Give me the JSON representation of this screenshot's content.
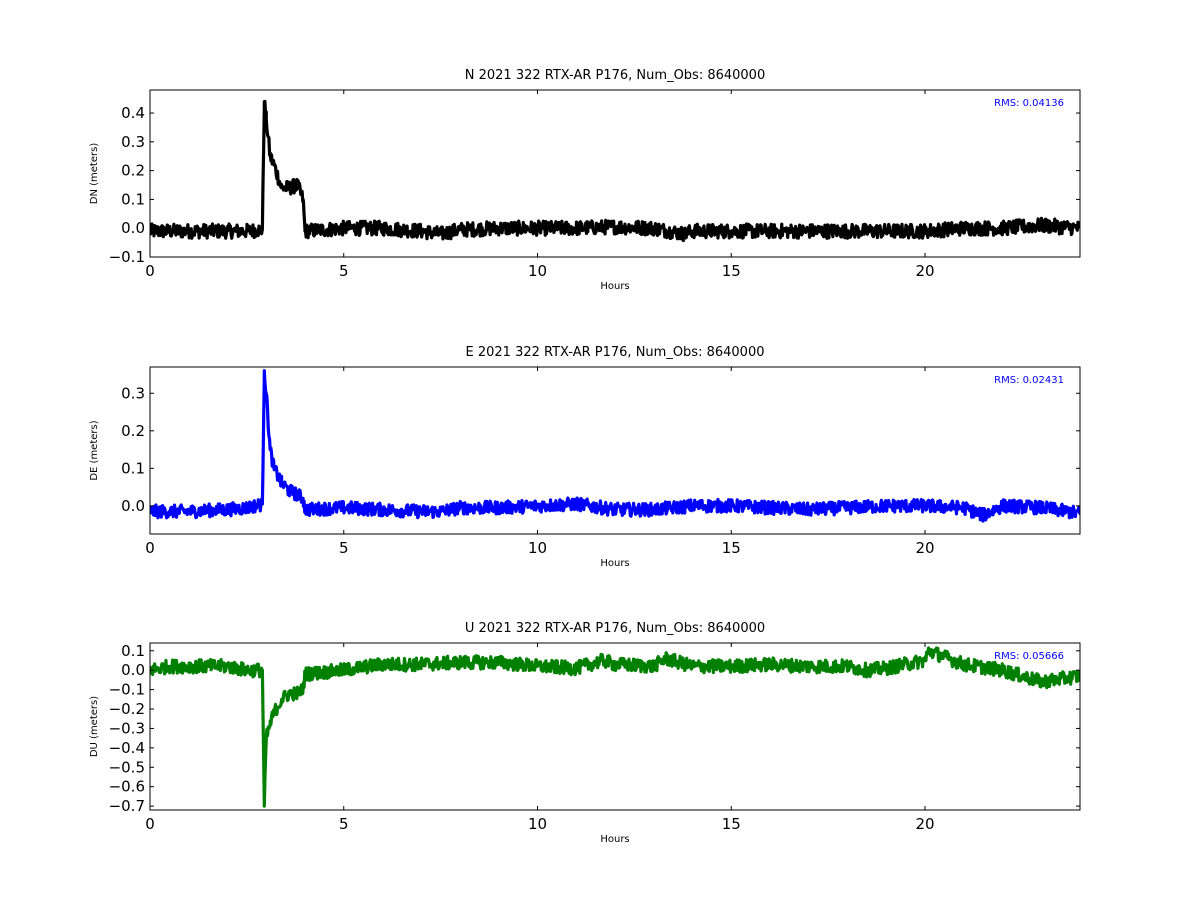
{
  "chart_data": [
    {
      "type": "line",
      "title": "N 2021 322 RTX-AR  P176, Num_Obs: 8640000",
      "xlabel": "Hours",
      "ylabel": "DN (meters)",
      "xlim": [
        0,
        24
      ],
      "ylim": [
        -0.1,
        0.48
      ],
      "xticks": [
        "0",
        "5",
        "10",
        "15",
        "20"
      ],
      "yticks": [
        "−0.1",
        "0.0",
        "0.1",
        "0.2",
        "0.3",
        "0.4"
      ],
      "rms_label": "RMS:  0.04136",
      "rms_color": "#0000ff",
      "line_color": "#000000",
      "band_width": 0.05,
      "series": [
        {
          "x": [
            0,
            0.5,
            1,
            1.5,
            2,
            2.5,
            2.9,
            2.95,
            3.0,
            3.1,
            3.2,
            3.4,
            3.6,
            3.8,
            3.95,
            4.0,
            5,
            6,
            7,
            7.5,
            8,
            9,
            10,
            11,
            12,
            13,
            13.8,
            14,
            15,
            16,
            17,
            18,
            19,
            20,
            21,
            22,
            23,
            23.5,
            24
          ],
          "y": [
            -0.01,
            -0.01,
            -0.01,
            -0.01,
            -0.01,
            -0.01,
            -0.005,
            0.44,
            0.38,
            0.25,
            0.22,
            0.14,
            0.14,
            0.15,
            0.1,
            -0.01,
            0.0,
            0.0,
            -0.01,
            -0.02,
            -0.005,
            0.0,
            0.0,
            0.0,
            0.005,
            0.0,
            -0.02,
            -0.01,
            -0.01,
            -0.01,
            -0.01,
            -0.01,
            -0.01,
            -0.01,
            0.0,
            0.0,
            0.01,
            0.005,
            0.0
          ]
        }
      ]
    },
    {
      "type": "line",
      "title": "E 2021 322 RTX-AR  P176, Num_Obs: 8640000",
      "xlabel": "Hours",
      "ylabel": "DE (meters)",
      "xlim": [
        0,
        24
      ],
      "ylim": [
        -0.075,
        0.37
      ],
      "xticks": [
        "0",
        "5",
        "10",
        "15",
        "20"
      ],
      "yticks": [
        "0.0",
        "0.1",
        "0.2",
        "0.3"
      ],
      "rms_label": "RMS:  0.02431",
      "rms_color": "#0000ff",
      "line_color": "#0000ff",
      "band_width": 0.035,
      "series": [
        {
          "x": [
            0,
            0.5,
            1,
            1.5,
            2,
            2.5,
            2.9,
            2.95,
            3.0,
            3.1,
            3.2,
            3.4,
            3.6,
            3.8,
            3.95,
            4.0,
            5,
            6,
            7,
            7.5,
            8,
            9,
            10,
            11,
            12,
            13,
            14,
            15,
            16,
            17,
            18,
            19,
            20,
            21,
            21.5,
            22,
            23,
            24
          ],
          "y": [
            -0.015,
            -0.015,
            -0.015,
            -0.012,
            -0.01,
            -0.005,
            0.005,
            0.36,
            0.3,
            0.15,
            0.1,
            0.06,
            0.04,
            0.03,
            0.02,
            -0.01,
            -0.005,
            -0.01,
            -0.015,
            -0.015,
            -0.005,
            -0.005,
            0.0,
            0.005,
            -0.01,
            -0.01,
            0.0,
            0.0,
            -0.005,
            -0.01,
            -0.005,
            0.0,
            0.0,
            -0.005,
            -0.025,
            0.0,
            -0.005,
            -0.02
          ]
        }
      ]
    },
    {
      "type": "line",
      "title": "U 2021 322 RTX-AR  P176, Num_Obs: 8640000",
      "xlabel": "Hours",
      "ylabel": "DU (meters)",
      "xlim": [
        0,
        24
      ],
      "ylim": [
        -0.72,
        0.14
      ],
      "xticks": [
        "0",
        "5",
        "10",
        "15",
        "20"
      ],
      "yticks": [
        "−0.7",
        "−0.6",
        "−0.5",
        "−0.4",
        "−0.3",
        "−0.2",
        "−0.1",
        "0.0",
        "0.1"
      ],
      "rms_label": "RMS:  0.05666",
      "rms_color": "#0000ff",
      "line_color": "#008000",
      "band_width": 0.07,
      "series": [
        {
          "x": [
            0,
            0.5,
            1,
            1.5,
            2,
            2.5,
            2.9,
            2.95,
            3.0,
            3.1,
            3.2,
            3.4,
            3.6,
            3.8,
            3.95,
            4.0,
            5,
            6,
            7,
            8,
            9,
            10,
            11,
            11.7,
            12,
            13,
            13.3,
            14,
            15,
            16,
            17,
            18,
            18.5,
            19,
            20,
            20.1,
            21,
            22,
            23,
            24
          ],
          "y": [
            0.0,
            0.02,
            0.02,
            0.02,
            0.02,
            0.0,
            0.0,
            -0.7,
            -0.35,
            -0.28,
            -0.22,
            -0.15,
            -0.12,
            -0.12,
            -0.1,
            -0.02,
            0.0,
            0.03,
            0.03,
            0.04,
            0.04,
            0.02,
            0.01,
            0.05,
            0.03,
            0.02,
            0.06,
            0.02,
            0.02,
            0.03,
            0.02,
            0.02,
            0.0,
            0.01,
            0.05,
            0.1,
            0.03,
            0.0,
            -0.06,
            -0.03
          ]
        }
      ]
    }
  ]
}
